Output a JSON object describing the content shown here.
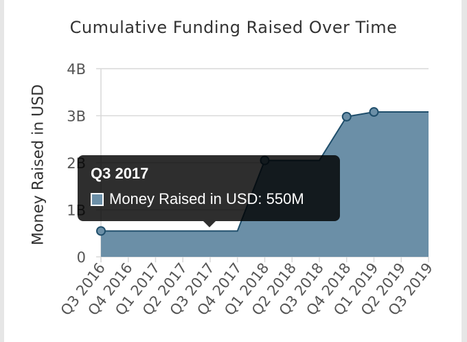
{
  "chart_data": {
    "type": "area",
    "title": "Cumulative Funding Raised Over Time",
    "xlabel": "",
    "ylabel": "Money Raised in USD",
    "categories": [
      "Q3 2016",
      "Q4 2016",
      "Q1 2017",
      "Q2 2017",
      "Q3 2017",
      "Q4 2017",
      "Q1 2018",
      "Q2 2018",
      "Q3 2018",
      "Q4 2018",
      "Q1 2019",
      "Q2 2019",
      "Q3 2019"
    ],
    "series": [
      {
        "name": "Money Raised in USD",
        "color": "#6b8fa7",
        "line_color": "#1f4e6b",
        "points": [
          {
            "x": "Q3 2016",
            "y": 550000000
          },
          {
            "x": "Q1 2018",
            "y": 2050000000
          },
          {
            "x": "Q4 2018",
            "y": 2980000000
          },
          {
            "x": "Q1 2019",
            "y": 3080000000
          }
        ],
        "values": [
          550000000,
          550000000,
          550000000,
          550000000,
          550000000,
          550000000,
          2050000000,
          2050000000,
          2050000000,
          2980000000,
          3080000000,
          3080000000,
          3080000000
        ]
      }
    ],
    "ylim": [
      0,
      4000000000
    ],
    "yticks": [
      {
        "value": 0,
        "label": "0"
      },
      {
        "value": 1000000000,
        "label": "1B"
      },
      {
        "value": 2000000000,
        "label": "2B"
      },
      {
        "value": 3000000000,
        "label": "3B"
      },
      {
        "value": 4000000000,
        "label": "4B"
      }
    ],
    "grid": true,
    "legend": "none"
  },
  "tooltip": {
    "title": "Q3 2017",
    "body": "Money Raised in USD: 550M",
    "caret_category": "Q3 2017"
  }
}
